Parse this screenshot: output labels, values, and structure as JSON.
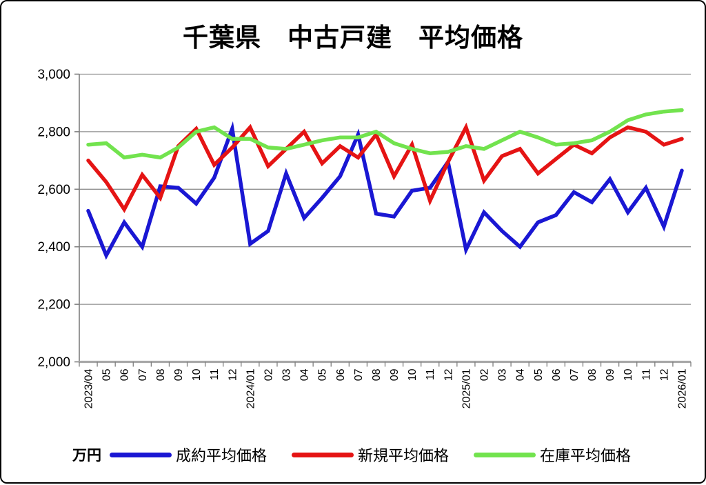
{
  "title": "千葉県　中古戸建　平均価格",
  "unit_label": "万円",
  "chart_data": {
    "type": "line",
    "title": "千葉県　中古戸建　平均価格",
    "xlabel": "",
    "ylabel": "万円",
    "ylim": [
      2000,
      3000
    ],
    "grid": true,
    "legend_position": "bottom",
    "y_ticks": [
      {
        "label": "3,000",
        "value": 3000
      },
      {
        "label": "2,800",
        "value": 2800
      },
      {
        "label": "2,600",
        "value": 2600
      },
      {
        "label": "2,400",
        "value": 2400
      },
      {
        "label": "2,200",
        "value": 2200
      },
      {
        "label": "2,000",
        "value": 2000
      }
    ],
    "categories": [
      "2023/04",
      "05",
      "06",
      "07",
      "08",
      "09",
      "10",
      "11",
      "12",
      "2024/01",
      "02",
      "03",
      "04",
      "05",
      "06",
      "07",
      "08",
      "09",
      "10",
      "11",
      "12",
      "2025/01",
      "02",
      "03",
      "04",
      "05",
      "06",
      "07",
      "08",
      "09",
      "10",
      "11",
      "12",
      "2026/01"
    ],
    "series": [
      {
        "name": "成約平均価格",
        "color": "#1a17d3",
        "values": [
          2525,
          2370,
          2485,
          2400,
          2610,
          2605,
          2550,
          2640,
          2810,
          2410,
          2455,
          2655,
          2500,
          2570,
          2645,
          2790,
          2515,
          2505,
          2595,
          2605,
          2695,
          2390,
          2520,
          2455,
          2400,
          2485,
          2510,
          2590,
          2555,
          2635,
          2520,
          2605,
          2470,
          2665
        ]
      },
      {
        "name": "新規平均価格",
        "color": "#e51414",
        "values": [
          2700,
          2625,
          2530,
          2650,
          2570,
          2750,
          2810,
          2685,
          2745,
          2815,
          2680,
          2740,
          2800,
          2690,
          2750,
          2710,
          2790,
          2645,
          2755,
          2560,
          2695,
          2815,
          2630,
          2715,
          2740,
          2655,
          2705,
          2755,
          2725,
          2780,
          2815,
          2800,
          2755,
          2775
        ]
      },
      {
        "name": "在庫平均価格",
        "color": "#72e34e",
        "values": [
          2755,
          2760,
          2710,
          2720,
          2710,
          2745,
          2800,
          2815,
          2775,
          2775,
          2745,
          2740,
          2755,
          2770,
          2780,
          2780,
          2800,
          2760,
          2740,
          2725,
          2730,
          2750,
          2740,
          2770,
          2800,
          2780,
          2755,
          2760,
          2770,
          2800,
          2840,
          2860,
          2870,
          2875
        ]
      }
    ],
    "axis_colors": {
      "gridline": "#8e8e8e",
      "y_axis": "#7f7f7f",
      "x_axis": "#a8a8a8",
      "tick": "#7f7f7f"
    }
  }
}
